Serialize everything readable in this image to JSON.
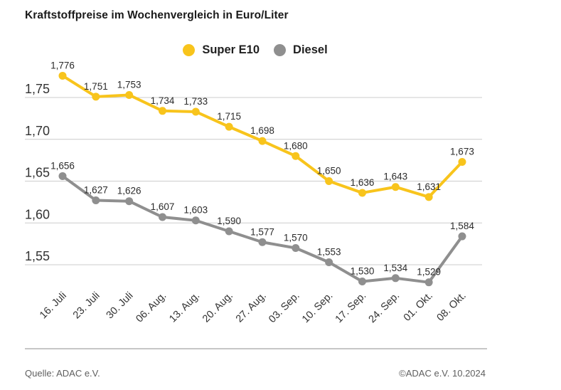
{
  "title": "Kraftstoffpreise im Wochenvergleich in Euro/Liter",
  "legend": {
    "items": [
      {
        "label": "Super E10",
        "color": "#F8C41C"
      },
      {
        "label": "Diesel",
        "color": "#8F8F8F"
      }
    ]
  },
  "footer": {
    "source": "Quelle: ADAC e.V.",
    "copyright": "©ADAC e.V. 10.2024"
  },
  "colors": {
    "super_e10": "#F8C41C",
    "diesel": "#8F8F8F",
    "gridline": "#cccccc",
    "axis_text": "#333333",
    "value_label": "#2b2b2b"
  },
  "chart_data": {
    "type": "line",
    "title": "Kraftstoffpreise im Wochenvergleich in Euro/Liter",
    "xlabel": "",
    "ylabel": "Euro/Liter",
    "categories": [
      "16. Juli",
      "23. Juli",
      "30. Juli",
      "06. Aug.",
      "13. Aug.",
      "20. Aug.",
      "27. Aug.",
      "03. Sep.",
      "10. Sep.",
      "17. Sep.",
      "24. Sep.",
      "01. Okt.",
      "08. Okt."
    ],
    "series": [
      {
        "name": "Super E10",
        "color": "#F8C41C",
        "values": [
          1.776,
          1.751,
          1.753,
          1.734,
          1.733,
          1.715,
          1.698,
          1.68,
          1.65,
          1.636,
          1.643,
          1.631,
          1.673
        ],
        "labels": [
          "1,776",
          "1,751",
          "1,753",
          "1,734",
          "1,733",
          "1,715",
          "1,698",
          "1,680",
          "1,650",
          "1,636",
          "1,643",
          "1,631",
          "1,673"
        ]
      },
      {
        "name": "Diesel",
        "color": "#8F8F8F",
        "values": [
          1.656,
          1.627,
          1.626,
          1.607,
          1.603,
          1.59,
          1.577,
          1.57,
          1.553,
          1.53,
          1.534,
          1.529,
          1.584
        ],
        "labels": [
          "1,656",
          "1,627",
          "1,626",
          "1,607",
          "1,603",
          "1,590",
          "1,577",
          "1,570",
          "1,553",
          "1,530",
          "1,534",
          "1,529",
          "1,584"
        ]
      }
    ],
    "yticks": [
      1.75,
      1.7,
      1.65,
      1.6,
      1.55
    ],
    "ytick_labels": [
      "1,75",
      "1,70",
      "1,65",
      "1,60",
      "1,55"
    ],
    "ylim": [
      1.5,
      1.8
    ],
    "grid": "horizontal",
    "legend_position": "top-center"
  }
}
